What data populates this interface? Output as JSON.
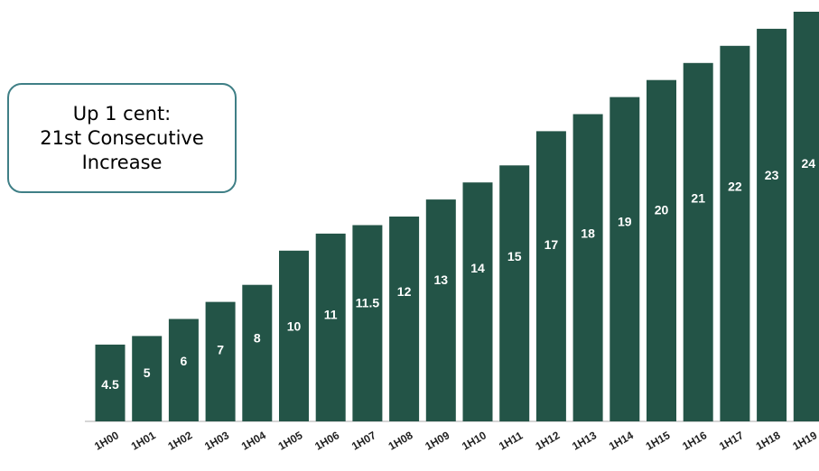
{
  "callout": {
    "text": "Up 1 cent:\n21st Consecutive\nIncrease"
  },
  "chart_data": {
    "type": "bar",
    "categories": [
      "1H00",
      "1H01",
      "1H02",
      "1H03",
      "1H04",
      "1H05",
      "1H06",
      "1H07",
      "1H08",
      "1H09",
      "1H10",
      "1H11",
      "1H12",
      "1H13",
      "1H14",
      "1H15",
      "1H16",
      "1H17",
      "1H18",
      "1H19"
    ],
    "values": [
      4.5,
      5,
      6,
      7,
      8,
      10,
      11,
      11.5,
      12,
      13,
      14,
      15,
      17,
      18,
      19,
      20,
      21,
      22,
      23,
      24
    ],
    "data_labels": [
      "4.5",
      "5",
      "6",
      "7",
      "8",
      "10",
      "11",
      "11.5",
      "12",
      "13",
      "14",
      "15",
      "17",
      "18",
      "19",
      "20",
      "21",
      "22",
      "23",
      "24"
    ],
    "bar_color": "#235447",
    "ylim": [
      0,
      24
    ],
    "grid": false,
    "legend": false
  }
}
